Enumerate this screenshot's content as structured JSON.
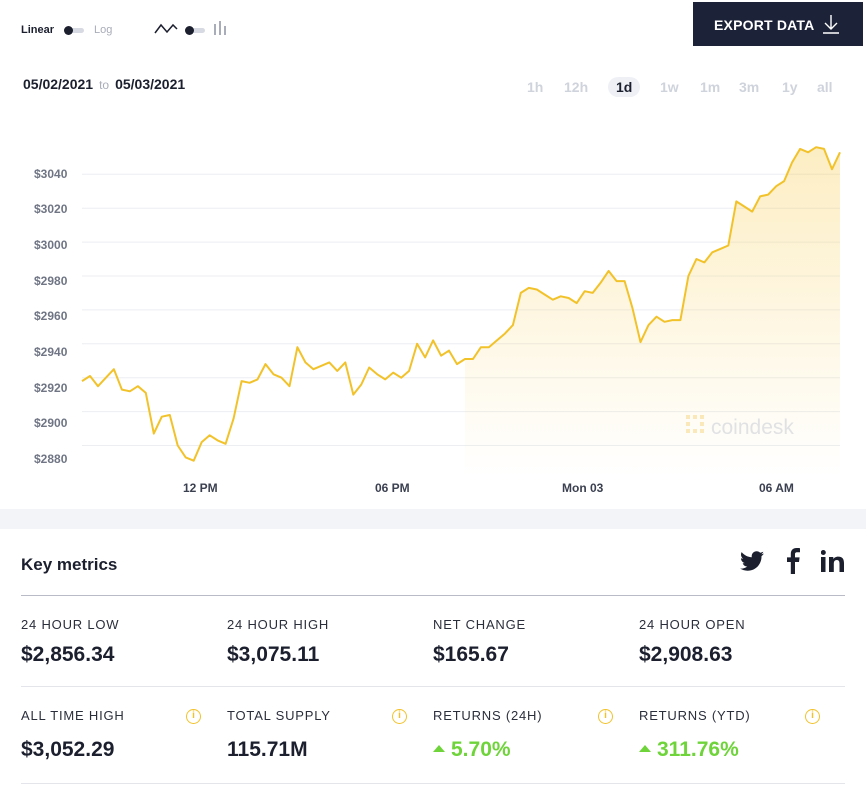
{
  "controls": {
    "scale_linear": "Linear",
    "scale_log": "Log",
    "export_label": "EXPORT DATA",
    "date_from": "05/02/2021",
    "date_to_word": "to",
    "date_to": "05/03/2021",
    "ranges": [
      "1h",
      "12h",
      "1d",
      "1w",
      "1m",
      "3m",
      "1y",
      "all"
    ],
    "active_range": "1d"
  },
  "watermark": "coindesk",
  "chart_data": {
    "type": "area",
    "y_ticks": [
      "$2880",
      "$2900",
      "$2920",
      "$2940",
      "$2960",
      "$2980",
      "$3000",
      "$3020",
      "$3040"
    ],
    "x_tick_labels": [
      "12 PM",
      "06 PM",
      "Mon 03",
      "06 AM"
    ],
    "ylim": [
      2862,
      3062
    ],
    "grid": true,
    "line_color": "#f2c22a",
    "series": [
      {
        "values": [
          2918,
          2921,
          2915,
          2920,
          2925,
          2913,
          2912,
          2915,
          2911,
          2887,
          2897,
          2898,
          2880,
          2873,
          2871,
          2882,
          2886,
          2883,
          2881,
          2896,
          2918,
          2917,
          2919,
          2928,
          2922,
          2920,
          2915,
          2938,
          2929,
          2925,
          2927,
          2929,
          2924,
          2929,
          2910,
          2916,
          2926,
          2922,
          2919,
          2923,
          2920,
          2924,
          2940,
          2932,
          2942,
          2933,
          2936,
          2928,
          2931,
          2931,
          2938,
          2938,
          2942,
          2946,
          2951,
          2970,
          2973,
          2972,
          2969,
          2966,
          2968,
          2967,
          2964,
          2971,
          2970,
          2976,
          2983,
          2977,
          2977,
          2961,
          2941,
          2951,
          2956,
          2953,
          2954,
          2954,
          2980,
          2990,
          2988,
          2994,
          2996,
          2998,
          3024,
          3021,
          3018,
          3027,
          3028,
          3033,
          3036,
          3047,
          3055,
          3053,
          3056,
          3055,
          3043,
          3053
        ]
      }
    ]
  },
  "key_metrics": {
    "title": "Key metrics",
    "items": [
      {
        "label": "24 HOUR LOW",
        "value": "$2,856.34"
      },
      {
        "label": "24 HOUR HIGH",
        "value": "$3,075.11"
      },
      {
        "label": "NET CHANGE",
        "value": "$165.67"
      },
      {
        "label": "24 HOUR OPEN",
        "value": "$2,908.63"
      },
      {
        "label": "ALL TIME HIGH",
        "value": "$3,052.29"
      },
      {
        "label": "TOTAL SUPPLY",
        "value": "115.71M"
      },
      {
        "label": "RETURNS (24H)",
        "value": "5.70%"
      },
      {
        "label": "RETURNS (YTD)",
        "value": "311.76%"
      }
    ],
    "info_glyph": "i",
    "up_color": "#6ed43a"
  },
  "social": [
    "twitter-icon",
    "facebook-icon",
    "linkedin-icon"
  ]
}
